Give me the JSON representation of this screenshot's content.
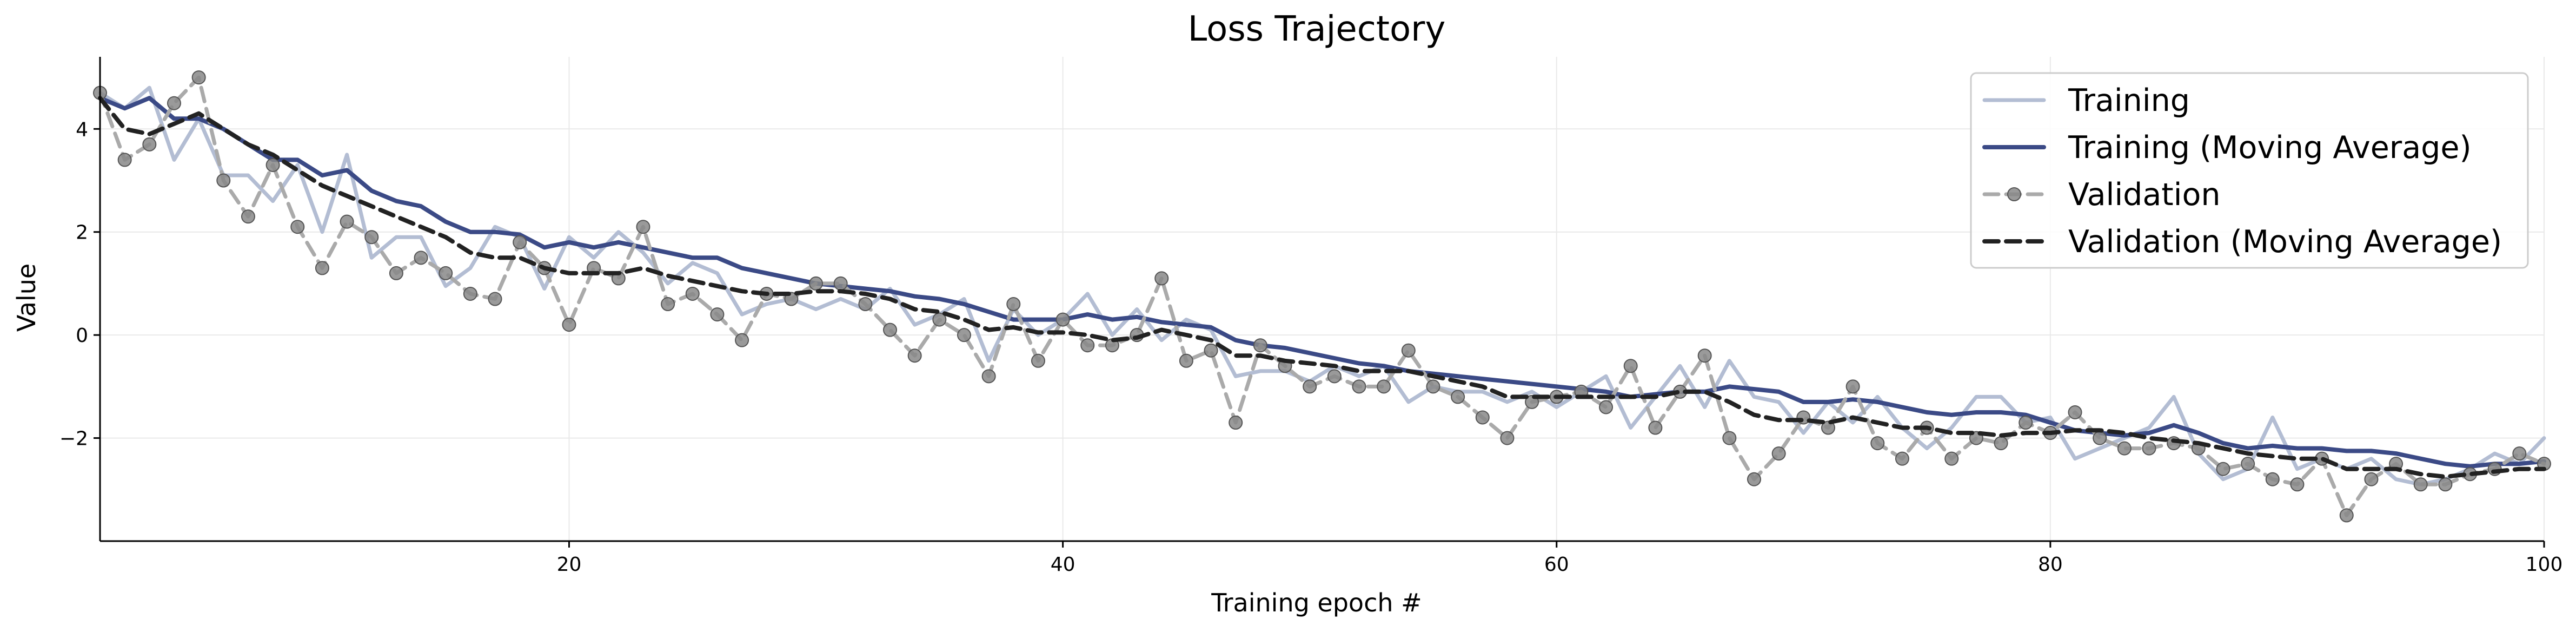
{
  "chart_data": {
    "type": "line",
    "title": "Loss Trajectory",
    "xlabel": "Training epoch #",
    "ylabel": "Value",
    "xlim": [
      1,
      100
    ],
    "ylim": [
      -4.0,
      5.4
    ],
    "xticks": [
      20,
      40,
      60,
      80,
      100
    ],
    "yticks": [
      -2,
      0,
      2,
      4
    ],
    "grid": true,
    "legend_position": "top-right",
    "x": [
      1,
      2,
      3,
      4,
      5,
      6,
      7,
      8,
      9,
      10,
      11,
      12,
      13,
      14,
      15,
      16,
      17,
      18,
      19,
      20,
      21,
      22,
      23,
      24,
      25,
      26,
      27,
      28,
      29,
      30,
      31,
      32,
      33,
      34,
      35,
      36,
      37,
      38,
      39,
      40,
      41,
      42,
      43,
      44,
      45,
      46,
      47,
      48,
      49,
      50,
      51,
      52,
      53,
      54,
      55,
      56,
      57,
      58,
      59,
      60,
      61,
      62,
      63,
      64,
      65,
      66,
      67,
      68,
      69,
      70,
      71,
      72,
      73,
      74,
      75,
      76,
      77,
      78,
      79,
      80,
      81,
      82,
      83,
      84,
      85,
      86,
      87,
      88,
      89,
      90,
      91,
      92,
      93,
      94,
      95,
      96,
      97,
      98,
      99,
      100
    ],
    "series": [
      {
        "name": "Training",
        "color": "#b3bdd3",
        "style": "solid",
        "marker": "none",
        "values": [
          4.7,
          4.4,
          4.8,
          3.4,
          4.2,
          3.1,
          3.1,
          2.6,
          3.3,
          2.0,
          3.5,
          1.5,
          1.9,
          1.9,
          0.95,
          1.3,
          2.1,
          1.9,
          0.9,
          1.9,
          1.5,
          2.0,
          1.6,
          1.0,
          1.4,
          1.2,
          0.4,
          0.6,
          0.7,
          0.5,
          0.7,
          0.5,
          0.9,
          0.2,
          0.4,
          0.7,
          -0.5,
          0.5,
          0.0,
          0.3,
          0.8,
          0.0,
          0.5,
          -0.1,
          0.3,
          0.1,
          -0.8,
          -0.7,
          -0.7,
          -0.9,
          -0.6,
          -0.8,
          -0.6,
          -1.3,
          -1.0,
          -1.1,
          -1.1,
          -1.3,
          -1.1,
          -1.4,
          -1.1,
          -0.8,
          -1.8,
          -1.2,
          -0.6,
          -1.4,
          -0.5,
          -1.2,
          -1.3,
          -1.9,
          -1.3,
          -1.7,
          -1.2,
          -1.8,
          -2.2,
          -1.8,
          -1.2,
          -1.2,
          -1.7,
          -1.6,
          -2.4,
          -2.2,
          -2.0,
          -1.8,
          -1.2,
          -2.3,
          -2.8,
          -2.6,
          -1.6,
          -2.6,
          -2.4,
          -2.6,
          -2.4,
          -2.8,
          -2.9,
          -2.8,
          -2.6,
          -2.3,
          -2.5,
          -2.0
        ]
      },
      {
        "name": "Training (Moving Average)",
        "color": "#3b4a86",
        "style": "solid",
        "marker": "none",
        "values": [
          4.6,
          4.4,
          4.6,
          4.2,
          4.2,
          4.0,
          3.7,
          3.4,
          3.4,
          3.1,
          3.2,
          2.8,
          2.6,
          2.5,
          2.2,
          2.0,
          2.0,
          1.95,
          1.7,
          1.8,
          1.7,
          1.8,
          1.7,
          1.6,
          1.5,
          1.5,
          1.3,
          1.2,
          1.1,
          1.0,
          0.95,
          0.9,
          0.85,
          0.75,
          0.7,
          0.6,
          0.45,
          0.3,
          0.3,
          0.3,
          0.4,
          0.3,
          0.35,
          0.25,
          0.2,
          0.15,
          -0.1,
          -0.2,
          -0.25,
          -0.35,
          -0.45,
          -0.55,
          -0.6,
          -0.7,
          -0.75,
          -0.8,
          -0.85,
          -0.9,
          -0.95,
          -1.0,
          -1.05,
          -1.1,
          -1.2,
          -1.15,
          -1.1,
          -1.1,
          -1.0,
          -1.05,
          -1.1,
          -1.3,
          -1.3,
          -1.25,
          -1.3,
          -1.4,
          -1.5,
          -1.55,
          -1.5,
          -1.5,
          -1.55,
          -1.7,
          -1.85,
          -1.9,
          -1.95,
          -1.9,
          -1.75,
          -1.9,
          -2.1,
          -2.2,
          -2.15,
          -2.2,
          -2.2,
          -2.25,
          -2.25,
          -2.3,
          -2.4,
          -2.5,
          -2.55,
          -2.5,
          -2.5,
          -2.45
        ]
      },
      {
        "name": "Validation",
        "color": "#aaaaaa",
        "style": "dashed",
        "marker": "circle",
        "values": [
          4.7,
          3.4,
          3.7,
          4.5,
          5.0,
          3.0,
          2.3,
          3.3,
          2.1,
          1.3,
          2.2,
          1.9,
          1.2,
          1.5,
          1.2,
          0.8,
          0.7,
          1.8,
          1.3,
          0.2,
          1.3,
          1.1,
          2.1,
          0.6,
          0.8,
          0.4,
          -0.1,
          0.8,
          0.7,
          1.0,
          1.0,
          0.6,
          0.1,
          -0.4,
          0.3,
          0.0,
          -0.8,
          0.6,
          -0.5,
          0.3,
          -0.2,
          -0.2,
          0.0,
          1.1,
          -0.5,
          -0.3,
          -1.7,
          -0.2,
          -0.6,
          -1.0,
          -0.8,
          -1.0,
          -1.0,
          -0.3,
          -1.0,
          -1.2,
          -1.6,
          -2.0,
          -1.3,
          -1.2,
          -1.1,
          -1.4,
          -0.6,
          -1.8,
          -1.1,
          -0.4,
          -2.0,
          -2.8,
          -2.3,
          -1.6,
          -1.8,
          -1.0,
          -2.1,
          -2.4,
          -1.8,
          -2.4,
          -2.0,
          -2.1,
          -1.7,
          -1.9,
          -1.5,
          -2.0,
          -2.2,
          -2.2,
          -2.1,
          -2.2,
          -2.6,
          -2.5,
          -2.8,
          -2.9,
          -2.4,
          -3.5,
          -2.8,
          -2.5,
          -2.9,
          -2.9,
          -2.7,
          -2.6,
          -2.3,
          -2.5
        ]
      },
      {
        "name": "Validation (Moving Average)",
        "color": "#222222",
        "style": "dashed",
        "marker": "none",
        "values": [
          4.6,
          4.0,
          3.9,
          4.1,
          4.3,
          4.0,
          3.7,
          3.5,
          3.2,
          2.9,
          2.7,
          2.5,
          2.3,
          2.1,
          1.9,
          1.6,
          1.5,
          1.5,
          1.3,
          1.2,
          1.2,
          1.2,
          1.3,
          1.15,
          1.05,
          0.95,
          0.85,
          0.8,
          0.8,
          0.85,
          0.85,
          0.8,
          0.7,
          0.5,
          0.45,
          0.3,
          0.1,
          0.15,
          0.05,
          0.05,
          0.0,
          -0.1,
          -0.05,
          0.1,
          0.0,
          -0.1,
          -0.4,
          -0.4,
          -0.5,
          -0.55,
          -0.6,
          -0.7,
          -0.7,
          -0.7,
          -0.8,
          -0.9,
          -1.0,
          -1.2,
          -1.2,
          -1.2,
          -1.2,
          -1.2,
          -1.2,
          -1.2,
          -1.1,
          -1.1,
          -1.3,
          -1.55,
          -1.65,
          -1.65,
          -1.7,
          -1.6,
          -1.7,
          -1.8,
          -1.8,
          -1.9,
          -1.9,
          -1.95,
          -1.9,
          -1.9,
          -1.85,
          -1.85,
          -1.9,
          -2.0,
          -2.05,
          -2.1,
          -2.2,
          -2.3,
          -2.35,
          -2.4,
          -2.4,
          -2.6,
          -2.6,
          -2.6,
          -2.7,
          -2.75,
          -2.7,
          -2.65,
          -2.6,
          -2.6
        ]
      }
    ]
  }
}
